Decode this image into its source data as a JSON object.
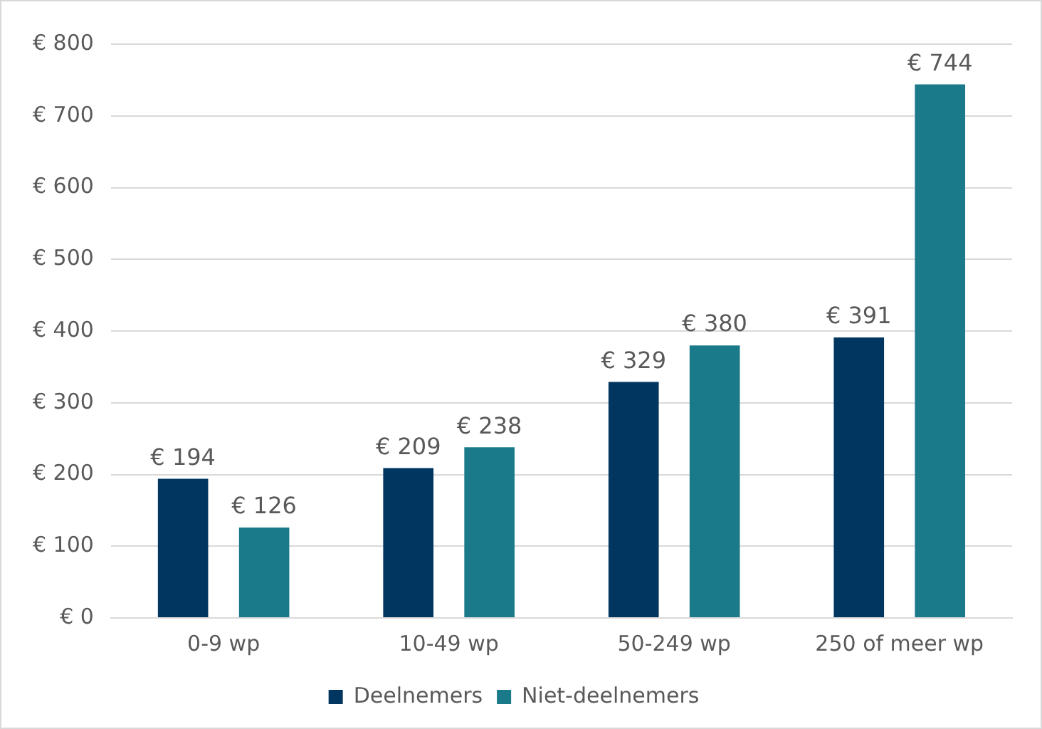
{
  "chart_data": {
    "type": "bar",
    "categories": [
      "0-9 wp",
      "10-49 wp",
      "50-249 wp",
      "250 of meer wp"
    ],
    "series": [
      {
        "name": "Deelnemers",
        "color": "#003660",
        "values": [
          194,
          209,
          329,
          391
        ],
        "value_labels": [
          "€ 194",
          "€ 209",
          "€ 329",
          "€ 391"
        ]
      },
      {
        "name": "Niet-deelnemers",
        "color": "#1b7a8a",
        "values": [
          126,
          238,
          380,
          744
        ],
        "value_labels": [
          "€ 126",
          "€ 238",
          "€ 380",
          "€ 744"
        ]
      }
    ],
    "ylim": [
      0,
      800
    ],
    "yticks": [
      {
        "value": 0,
        "label": "€ 0"
      },
      {
        "value": 100,
        "label": "€ 100"
      },
      {
        "value": 200,
        "label": "€ 200"
      },
      {
        "value": 300,
        "label": "€ 300"
      },
      {
        "value": 400,
        "label": "€ 400"
      },
      {
        "value": 500,
        "label": "€ 500"
      },
      {
        "value": 600,
        "label": "€ 600"
      },
      {
        "value": 700,
        "label": "€ 700"
      },
      {
        "value": 800,
        "label": "€ 800"
      }
    ],
    "grid": "y",
    "legend": "bottom"
  }
}
